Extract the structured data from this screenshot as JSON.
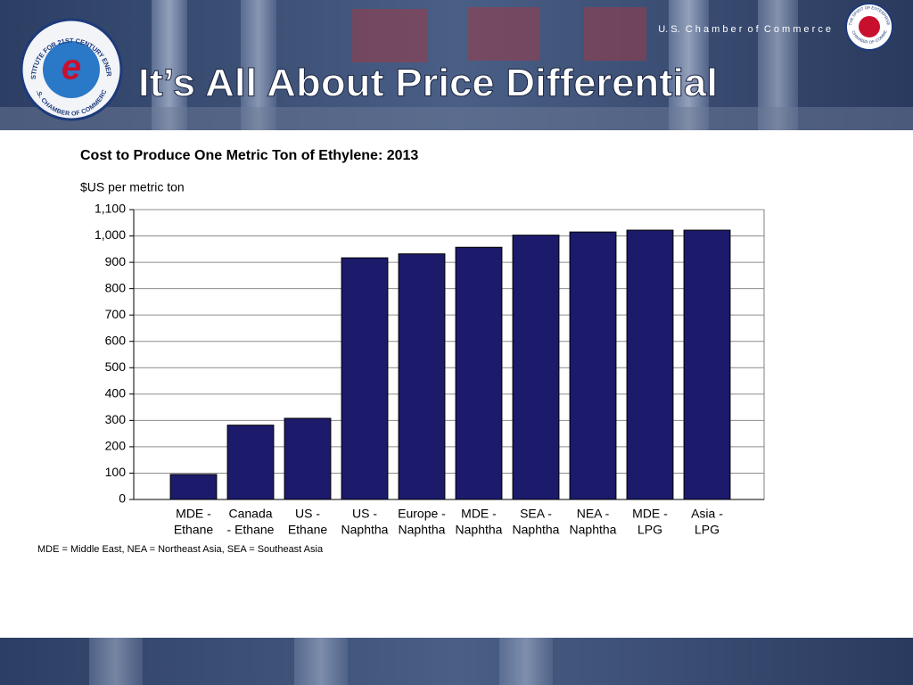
{
  "slide": {
    "title": "It’s All About Price Differential",
    "org": "U. S.  C h a m b e r  o f  C o m m e r c e",
    "left_logo": {
      "top": "INSTITUTE FOR 21ST CENTURY ENERGY",
      "bottom": "U.S. CHAMBER OF COMMERCE",
      "mark": "e"
    },
    "right_logo": {
      "top": "THE SPIRIT OF ENTERPRISE",
      "bottom": "U.S. CHAMBER OF COMMERCE"
    },
    "footnote": "MDE = Middle East, NEA = Northeast Asia, SEA = Southeast Asia"
  },
  "chart_data": {
    "type": "bar",
    "title": "Cost to Produce One Metric Ton of Ethylene: 2013",
    "y_label": "$US per metric ton",
    "categories": [
      [
        "MDE -",
        "Ethane"
      ],
      [
        "Canada",
        "- Ethane"
      ],
      [
        "US -",
        "Ethane"
      ],
      [
        "US -",
        "Naphtha"
      ],
      [
        "Europe -",
        "Naphtha"
      ],
      [
        "MDE -",
        "Naphtha"
      ],
      [
        "SEA -",
        "Naphtha"
      ],
      [
        "NEA -",
        "Naphtha"
      ],
      [
        "MDE -",
        "LPG"
      ],
      [
        "Asia -",
        "LPG"
      ]
    ],
    "values": [
      95,
      282,
      308,
      917,
      932,
      957,
      1003,
      1015,
      1022,
      1022
    ],
    "color": "#1c1a6b",
    "ylim": [
      0,
      1100
    ],
    "yticks": [
      0,
      100,
      200,
      300,
      400,
      500,
      600,
      700,
      800,
      900,
      {
        "value": 1000,
        "label": "1,000"
      },
      {
        "value": 1100,
        "label": "1,100"
      }
    ],
    "grid": true
  }
}
